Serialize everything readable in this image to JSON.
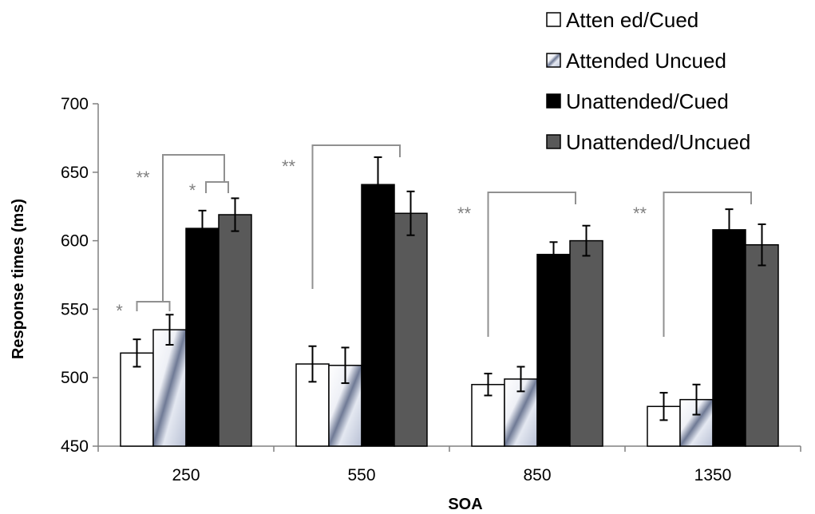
{
  "chart_data": {
    "type": "bar",
    "xlabel": "SOA",
    "ylabel": "Response times (ms)",
    "ylim": [
      450,
      700
    ],
    "yticks": [
      "450",
      "500",
      "550",
      "600",
      "650",
      "700"
    ],
    "categories": [
      "250",
      "550",
      "850",
      "1350"
    ],
    "legend_position": "top-right",
    "series": [
      {
        "name": "Atten ed/Cued",
        "values": [
          518,
          510,
          495,
          479
        ],
        "errors": [
          10,
          13,
          8,
          10
        ],
        "color": "#ffffff",
        "pattern": "solid-white"
      },
      {
        "name": "Attended Uncued",
        "values": [
          535,
          509,
          499,
          484
        ],
        "errors": [
          11,
          13,
          9,
          11
        ],
        "color": "#b8c0d4",
        "pattern": "diagonal-gradient"
      },
      {
        "name": "Unattended/Cued",
        "values": [
          609,
          641,
          590,
          608
        ],
        "errors": [
          13,
          20,
          9,
          15
        ],
        "color": "#000000",
        "pattern": "solid-black"
      },
      {
        "name": "Unattended/Uncued",
        "values": [
          619,
          620,
          600,
          597
        ],
        "errors": [
          12,
          16,
          11,
          15
        ],
        "color": "#595959",
        "pattern": "solid-gray"
      }
    ],
    "annotations": [
      {
        "label": "**",
        "group": "250",
        "from_series": 0,
        "to_series": 3
      },
      {
        "label": "*",
        "group": "250",
        "from_series": 0,
        "to_series": 1
      },
      {
        "label": "*",
        "group": "250",
        "from_series": 2,
        "to_series": 3
      },
      {
        "label": "**",
        "group": "550",
        "from_series": 0,
        "to_series": 3
      },
      {
        "label": "**",
        "group": "850",
        "from_series": 0,
        "to_series": 3
      },
      {
        "label": "**",
        "group": "1350",
        "from_series": 0,
        "to_series": 3
      }
    ]
  }
}
